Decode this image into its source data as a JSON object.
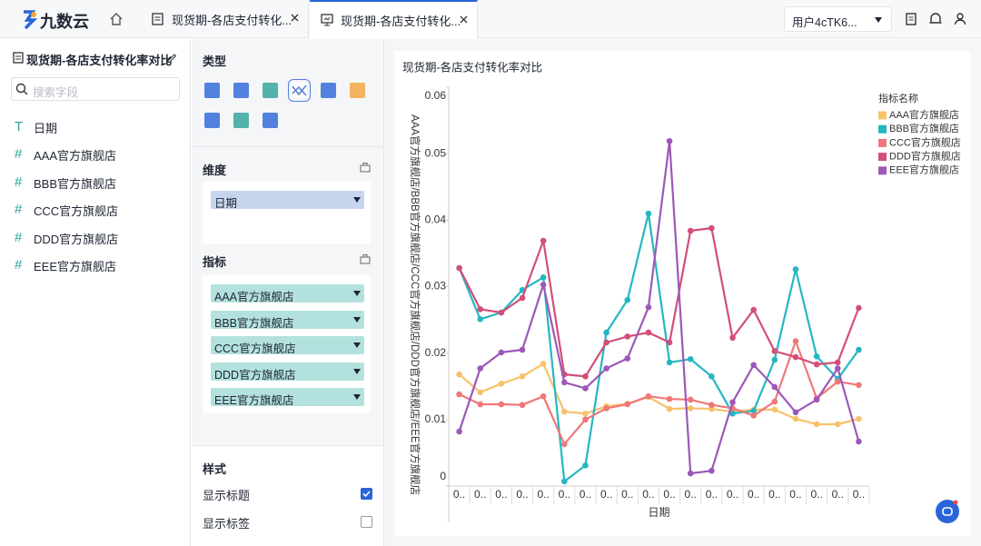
{
  "app": {
    "brand": "九数云",
    "tabs": [
      "现货期-各店支付转化...",
      "现货期-各店支付转化..."
    ],
    "user": "用户4cTK6..."
  },
  "sidebar": {
    "title": "现货期-各店支付转化率对比",
    "search_placeholder": "搜索字段",
    "fields": [
      {
        "icon": "T",
        "name": "日期"
      },
      {
        "icon": "#",
        "name": "AAA官方旗舰店"
      },
      {
        "icon": "#",
        "name": "BBB官方旗舰店"
      },
      {
        "icon": "#",
        "name": "CCC官方旗舰店"
      },
      {
        "icon": "#",
        "name": "DDD官方旗舰店"
      },
      {
        "icon": "#",
        "name": "EEE官方旗舰店"
      }
    ]
  },
  "panel": {
    "type_label": "类型",
    "dimension_label": "维度",
    "dimensions": [
      "日期"
    ],
    "metric_label": "指标",
    "metrics": [
      "AAA官方旗舰店",
      "BBB官方旗舰店",
      "CCC官方旗舰店",
      "DDD官方旗舰店",
      "EEE官方旗舰店"
    ],
    "style_label": "样式",
    "options": [
      {
        "label": "显示标题",
        "checked": true
      },
      {
        "label": "显示标签",
        "checked": false
      }
    ]
  },
  "chart_data": {
    "type": "line",
    "title": "现货期-各店支付转化率对比",
    "x_label": "日期",
    "y_label": "AAA官方旗舰店/BBB官方旗舰店/CCC官方旗舰店/DDD官方旗舰店/EEE官方旗舰店",
    "legend_title": "指标名称",
    "legend_position": "right",
    "categories": [
      "0..",
      "0..",
      "0..",
      "0..",
      "0..",
      "0..",
      "0..",
      "0..",
      "0..",
      "0..",
      "0..",
      "0..",
      "0..",
      "0..",
      "0..",
      "0..",
      "0..",
      "0..",
      "0..",
      "0.."
    ],
    "ylim": [
      0,
      0.06
    ],
    "yticks": [
      0,
      0.01,
      0.02,
      0.03,
      0.04,
      0.05,
      0.06
    ],
    "grid": false,
    "series": [
      {
        "name": "AAA官方旗舰店",
        "color": "#f7c26c",
        "values": [
          0.0168,
          0.0141,
          0.0154,
          0.0165,
          0.0184,
          0.0112,
          0.0109,
          0.012,
          0.0124,
          0.0134,
          0.0116,
          0.0117,
          0.0116,
          0.0112,
          0.0115,
          0.0115,
          0.0101,
          0.0093,
          0.0093,
          0.0101
        ]
      },
      {
        "name": "BBB官方旗舰店",
        "color": "#25b7c1",
        "values": [
          0.0328,
          0.0251,
          0.0261,
          0.0295,
          0.0314,
          0.0007,
          0.0031,
          0.0231,
          0.028,
          0.041,
          0.0186,
          0.0191,
          0.0165,
          0.0109,
          0.0113,
          0.019,
          0.0326,
          0.0195,
          0.0161,
          0.0205
        ]
      },
      {
        "name": "CCC官方旗舰店",
        "color": "#f07878",
        "values": [
          0.0138,
          0.0123,
          0.0123,
          0.0122,
          0.0135,
          0.0063,
          0.01,
          0.0117,
          0.0123,
          0.0135,
          0.0131,
          0.013,
          0.0122,
          0.0117,
          0.0106,
          0.0127,
          0.0218,
          0.0132,
          0.0157,
          0.0152
        ]
      },
      {
        "name": "DDD官方旗舰店",
        "color": "#d24f78",
        "values": [
          0.0328,
          0.0266,
          0.0261,
          0.0283,
          0.0369,
          0.0168,
          0.0165,
          0.0216,
          0.0225,
          0.0231,
          0.0216,
          0.0384,
          0.0388,
          0.0223,
          0.0265,
          0.0203,
          0.0194,
          0.0183,
          0.0186,
          0.0268
        ]
      },
      {
        "name": "EEE官方旗舰店",
        "color": "#9c58b8",
        "values": [
          0.0082,
          0.0177,
          0.0201,
          0.0205,
          0.0303,
          0.0156,
          0.0147,
          0.0177,
          0.0192,
          0.0269,
          0.0519,
          0.0019,
          0.0023,
          0.0126,
          0.0182,
          0.0149,
          0.0111,
          0.013,
          0.0177,
          0.0067
        ]
      }
    ]
  }
}
